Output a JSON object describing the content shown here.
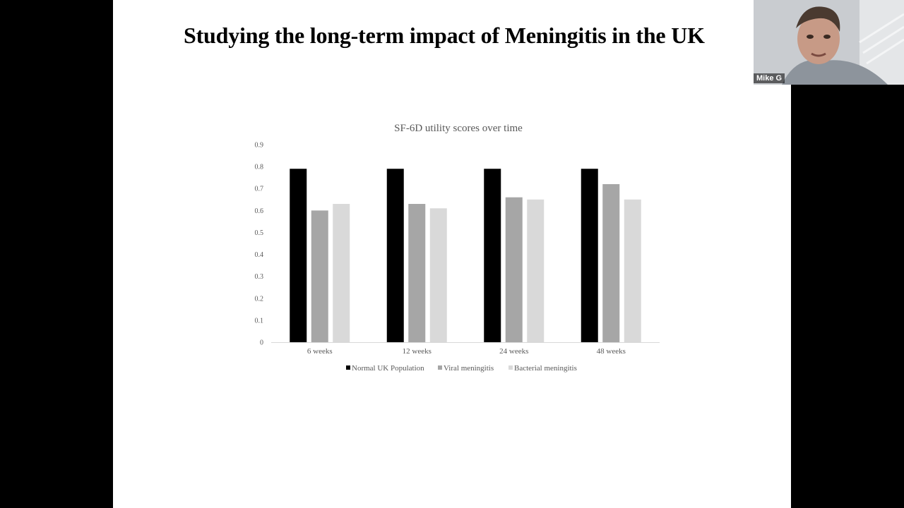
{
  "slide": {
    "title": "Studying the long-term impact of Meningitis in the UK"
  },
  "video": {
    "participant_name": "Mike G",
    "icon": "person-video-icon"
  },
  "colors": {
    "normal": "#000000",
    "viral": "#a6a6a6",
    "bacterial": "#d9d9d9",
    "axis": "#d9d9d9",
    "text": "#595959"
  },
  "chart_data": {
    "type": "bar",
    "title": "SF-6D utility scores over time",
    "xlabel": "",
    "ylabel": "",
    "categories": [
      "6 weeks",
      "12 weeks",
      "24 weeks",
      "48 weeks"
    ],
    "series": [
      {
        "name": "Normal UK Population",
        "values": [
          0.79,
          0.79,
          0.79,
          0.79
        ]
      },
      {
        "name": "Viral meningitis",
        "values": [
          0.6,
          0.63,
          0.66,
          0.72
        ]
      },
      {
        "name": "Bacterial meningitis",
        "values": [
          0.63,
          0.61,
          0.65,
          0.65
        ]
      }
    ],
    "ylim": [
      0,
      0.9
    ],
    "yticks": [
      "0",
      "0.1",
      "0.2",
      "0.3",
      "0.4",
      "0.5",
      "0.6",
      "0.7",
      "0.8",
      "0.9"
    ],
    "grid": false,
    "legend": "bottom"
  }
}
